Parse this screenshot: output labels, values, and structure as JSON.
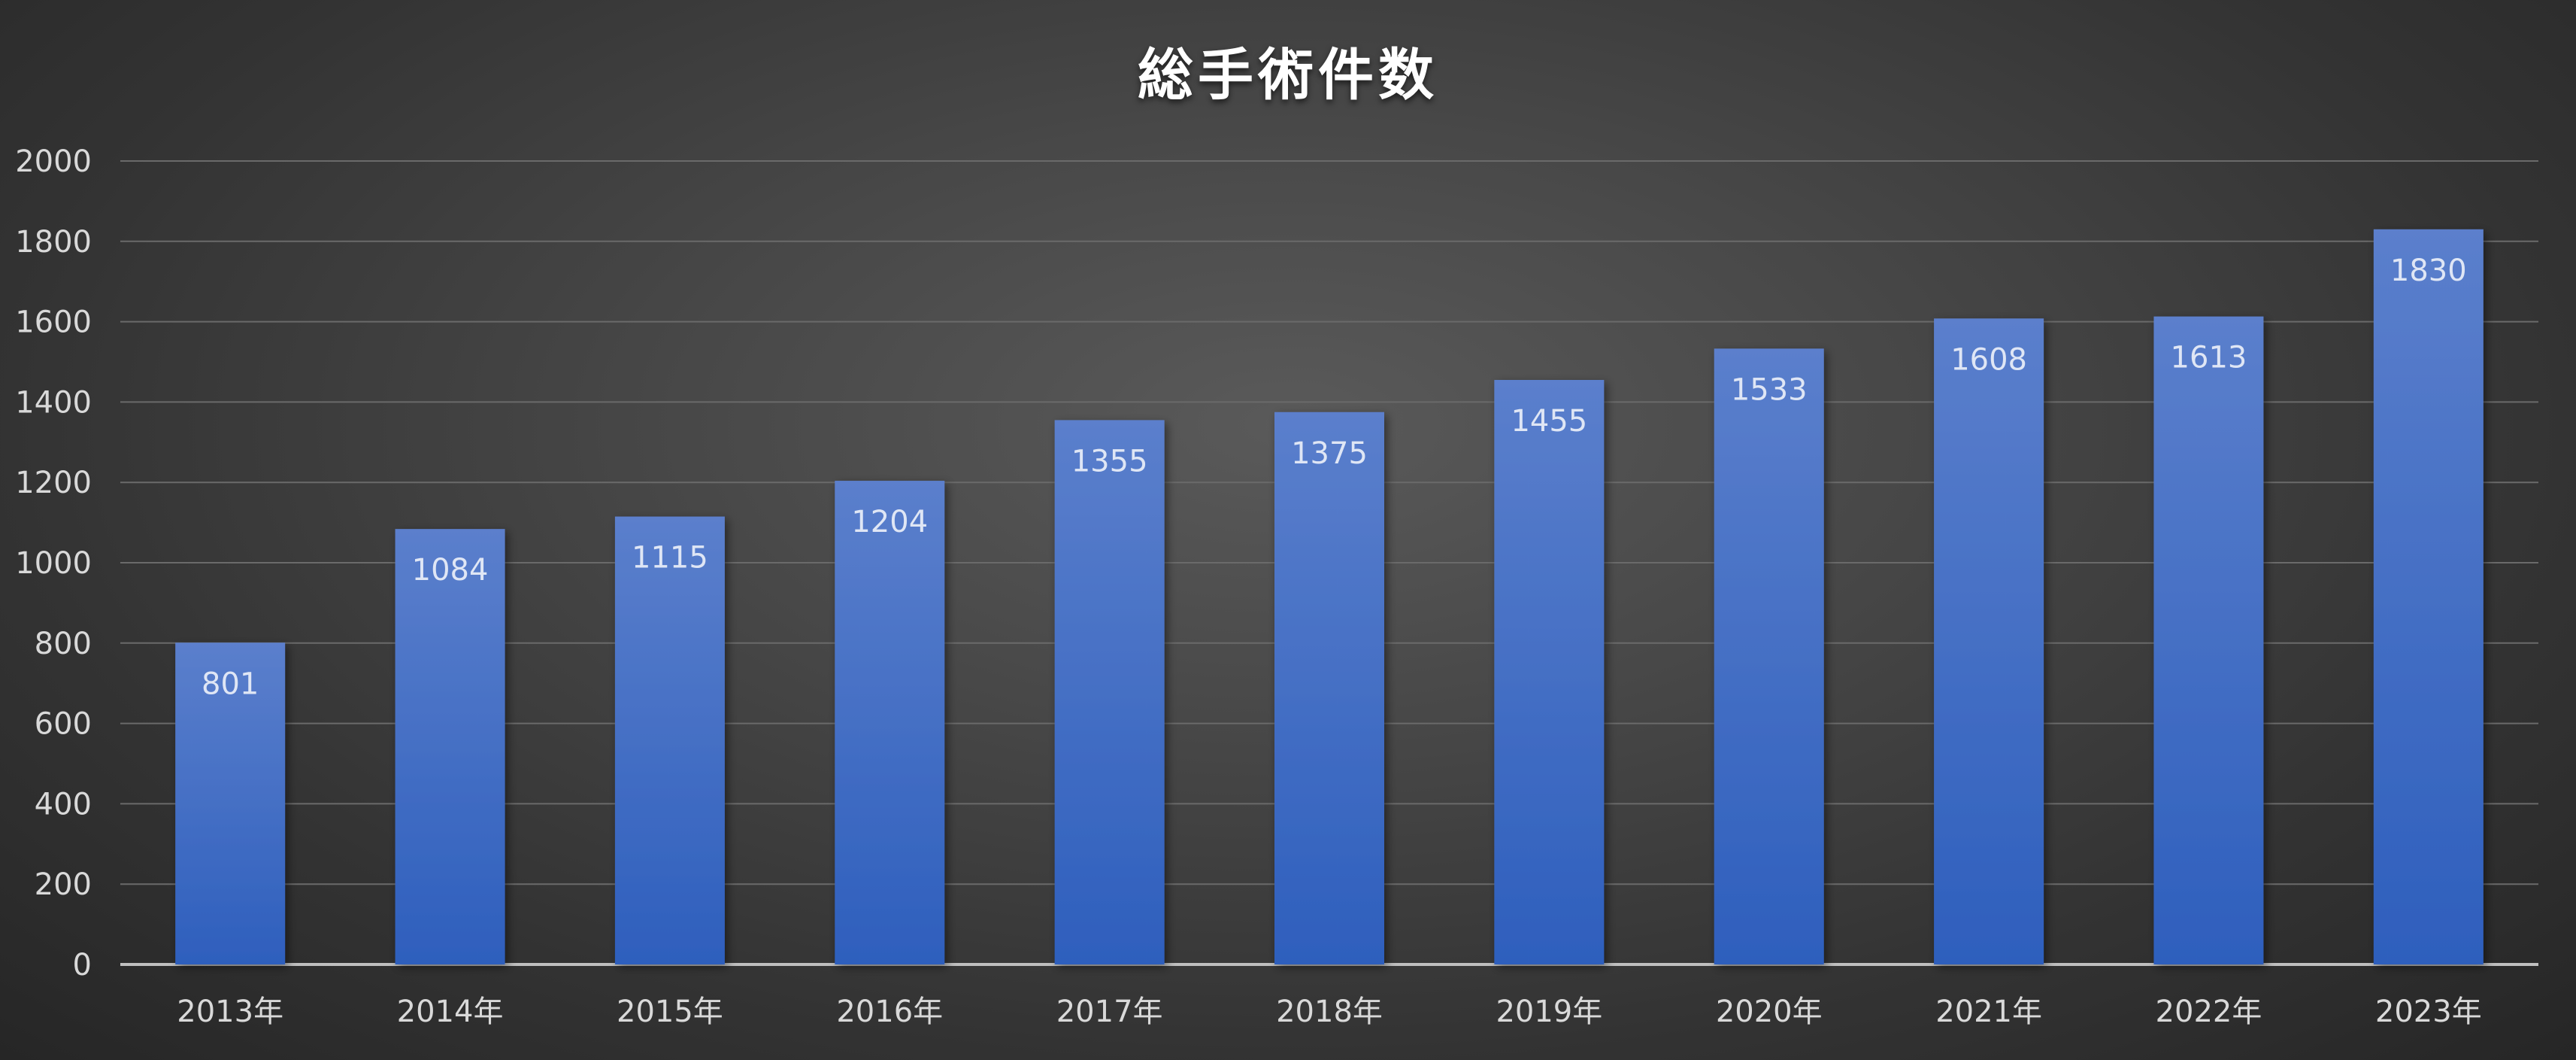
{
  "chart_data": {
    "type": "bar",
    "title": "総手術件数",
    "categories": [
      "2013年",
      "2014年",
      "2015年",
      "2016年",
      "2017年",
      "2018年",
      "2019年",
      "2020年",
      "2021年",
      "2022年",
      "2023年"
    ],
    "values": [
      801,
      1084,
      1115,
      1204,
      1355,
      1375,
      1455,
      1533,
      1608,
      1613,
      1830
    ],
    "data_labels": [
      "801",
      "1084",
      "1115",
      "1204",
      "1355",
      "1375",
      "1455",
      "1533",
      "1608",
      "1613",
      "1830"
    ],
    "ylim": [
      0,
      2000
    ],
    "yticks": [
      0,
      200,
      400,
      600,
      800,
      1000,
      1200,
      1400,
      1600,
      1800,
      2000
    ],
    "ytick_labels": [
      "0",
      "200",
      "400",
      "600",
      "800",
      "1000",
      "1200",
      "1400",
      "1600",
      "1800",
      "2000"
    ],
    "grid": true,
    "bar_color_top": "#5b7fcc",
    "bar_color_bottom": "#2e5fbd",
    "gridline_color": "#6a6a6a",
    "axis_color": "#bfbfbf"
  }
}
